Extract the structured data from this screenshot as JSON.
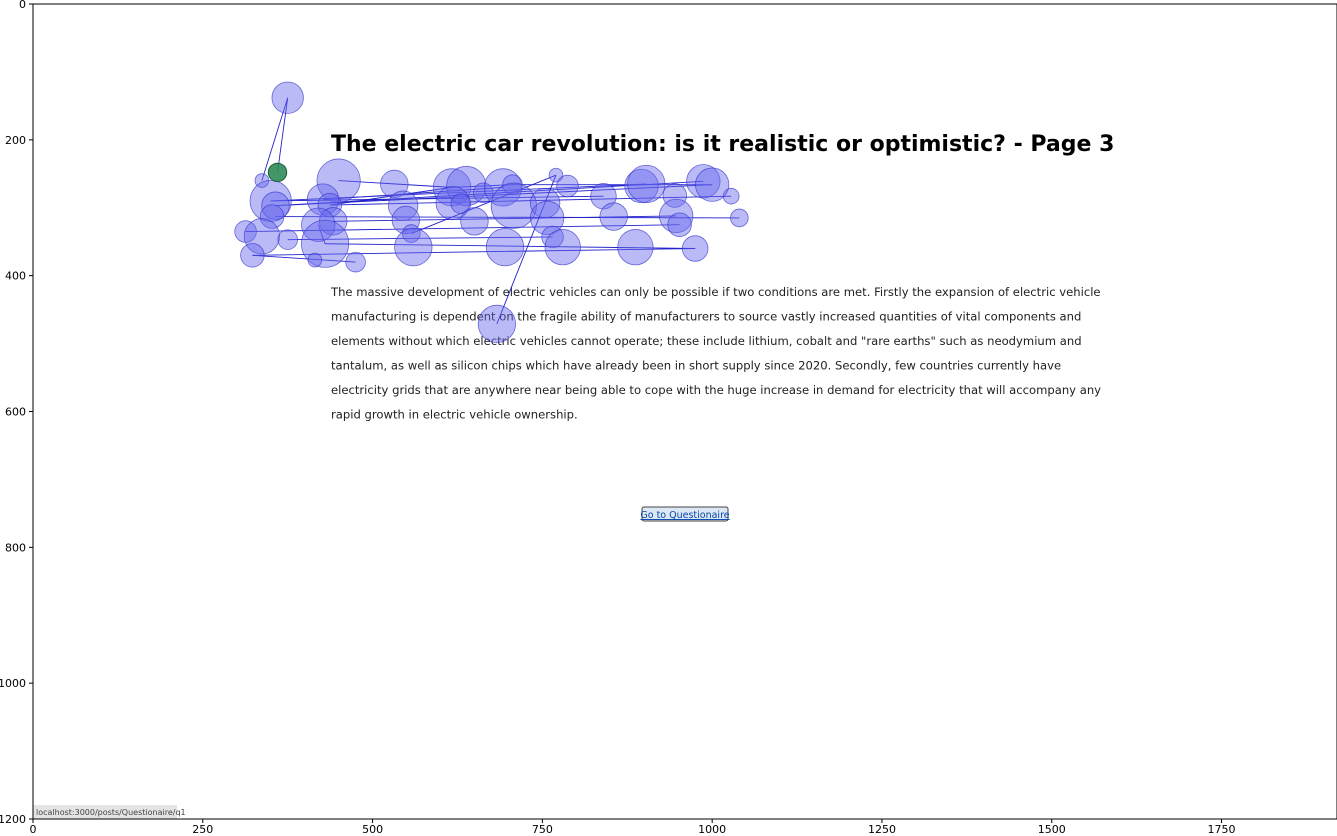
{
  "page": {
    "title": "The electric car revolution: is it realistic or optimistic? - Page 3",
    "body_lines": [
      "The massive development of electric vehicles can only be possible if two conditions are met. Firstly the expansion of electric vehicle",
      "manufacturing is dependent on the fragile ability of manufacturers to source vastly increased quantities of vital components and",
      "elements without which electric vehicles cannot operate; these include lithium, cobalt and \"rare earths\" such as neodymium and",
      "tantalum, as well as silicon chips which have already been in short supply since 2020. Secondly, few countries currently have",
      "electricity grids that are anywhere near being able to cope with the huge increase in demand for electricity that will accompany any",
      "rapid growth in electric vehicle ownership."
    ],
    "button_label": "Go to Questionaire",
    "status_url": "localhost:3000/posts/Questionaire/q1"
  },
  "colors": {
    "fixation_fill": "#6666ee",
    "fixation_edge": "#3333cc",
    "saccade_line": "#2222cc",
    "current_fixation": "#2e8b57",
    "link": "#0645ad",
    "button_bg": "#dde8f5",
    "button_border": "#444444",
    "status_bg": "#e4e4e4"
  },
  "chart_data": {
    "type": "scatter",
    "xlim": [
      0,
      1920
    ],
    "ylim": [
      1200,
      0
    ],
    "xticks": [
      0,
      250,
      500,
      750,
      1000,
      1250,
      1500,
      1750
    ],
    "yticks": [
      0,
      200,
      400,
      600,
      800,
      1000,
      1200
    ],
    "grid": false,
    "current_fixation": {
      "x": 360,
      "y": 248,
      "r": 12
    },
    "fixations": [
      {
        "x": 375,
        "y": 138,
        "r": 16
      },
      {
        "x": 337,
        "y": 260,
        "r": 7
      },
      {
        "x": 450,
        "y": 260,
        "r": 22
      },
      {
        "x": 532,
        "y": 265,
        "r": 14
      },
      {
        "x": 617,
        "y": 270,
        "r": 19
      },
      {
        "x": 638,
        "y": 268,
        "r": 20
      },
      {
        "x": 663,
        "y": 278,
        "r": 10
      },
      {
        "x": 692,
        "y": 270,
        "r": 19
      },
      {
        "x": 706,
        "y": 266,
        "r": 10
      },
      {
        "x": 770,
        "y": 252,
        "r": 7
      },
      {
        "x": 787,
        "y": 268,
        "r": 11
      },
      {
        "x": 840,
        "y": 283,
        "r": 13
      },
      {
        "x": 896,
        "y": 268,
        "r": 17
      },
      {
        "x": 903,
        "y": 265,
        "r": 19
      },
      {
        "x": 945,
        "y": 282,
        "r": 12
      },
      {
        "x": 987,
        "y": 261,
        "r": 17
      },
      {
        "x": 1000,
        "y": 266,
        "r": 17
      },
      {
        "x": 1028,
        "y": 283,
        "r": 8
      },
      {
        "x": 350,
        "y": 290,
        "r": 21
      },
      {
        "x": 357,
        "y": 297,
        "r": 14
      },
      {
        "x": 427,
        "y": 288,
        "r": 16
      },
      {
        "x": 437,
        "y": 296,
        "r": 12
      },
      {
        "x": 545,
        "y": 297,
        "r": 15
      },
      {
        "x": 618,
        "y": 293,
        "r": 17
      },
      {
        "x": 630,
        "y": 294,
        "r": 10
      },
      {
        "x": 708,
        "y": 297,
        "r": 23
      },
      {
        "x": 754,
        "y": 293,
        "r": 15
      },
      {
        "x": 352,
        "y": 313,
        "r": 12
      },
      {
        "x": 442,
        "y": 320,
        "r": 14
      },
      {
        "x": 549,
        "y": 318,
        "r": 14
      },
      {
        "x": 650,
        "y": 320,
        "r": 14
      },
      {
        "x": 757,
        "y": 315,
        "r": 17
      },
      {
        "x": 855,
        "y": 313,
        "r": 14
      },
      {
        "x": 947,
        "y": 312,
        "r": 17
      },
      {
        "x": 952,
        "y": 325,
        "r": 12
      },
      {
        "x": 1040,
        "y": 315,
        "r": 9
      },
      {
        "x": 313,
        "y": 335,
        "r": 11
      },
      {
        "x": 337,
        "y": 342,
        "r": 18
      },
      {
        "x": 375,
        "y": 347,
        "r": 10
      },
      {
        "x": 420,
        "y": 325,
        "r": 17
      },
      {
        "x": 430,
        "y": 353,
        "r": 24
      },
      {
        "x": 557,
        "y": 338,
        "r": 9
      },
      {
        "x": 560,
        "y": 358,
        "r": 19
      },
      {
        "x": 695,
        "y": 358,
        "r": 19
      },
      {
        "x": 765,
        "y": 343,
        "r": 11
      },
      {
        "x": 780,
        "y": 358,
        "r": 18
      },
      {
        "x": 887,
        "y": 358,
        "r": 18
      },
      {
        "x": 975,
        "y": 360,
        "r": 13
      },
      {
        "x": 323,
        "y": 370,
        "r": 12
      },
      {
        "x": 415,
        "y": 377,
        "r": 7
      },
      {
        "x": 475,
        "y": 380,
        "r": 10
      },
      {
        "x": 683,
        "y": 471,
        "r": 19
      }
    ],
    "saccades": [
      [
        [
          375,
          138
        ],
        [
          337,
          260
        ]
      ],
      [
        [
          375,
          138
        ],
        [
          360,
          248
        ]
      ],
      [
        [
          450,
          260
        ],
        [
          617,
          270
        ]
      ],
      [
        [
          617,
          270
        ],
        [
          706,
          266
        ]
      ],
      [
        [
          706,
          266
        ],
        [
          1000,
          266
        ]
      ],
      [
        [
          357,
          297
        ],
        [
          1000,
          266
        ]
      ],
      [
        [
          357,
          297
        ],
        [
          987,
          261
        ]
      ],
      [
        [
          350,
          290
        ],
        [
          903,
          265
        ]
      ],
      [
        [
          437,
          296
        ],
        [
          1028,
          283
        ]
      ],
      [
        [
          357,
          313
        ],
        [
          1040,
          315
        ]
      ],
      [
        [
          442,
          320
        ],
        [
          947,
          312
        ]
      ],
      [
        [
          313,
          335
        ],
        [
          952,
          325
        ]
      ],
      [
        [
          375,
          347
        ],
        [
          765,
          343
        ]
      ],
      [
        [
          430,
          353
        ],
        [
          975,
          360
        ]
      ],
      [
        [
          323,
          370
        ],
        [
          975,
          360
        ]
      ],
      [
        [
          323,
          370
        ],
        [
          475,
          380
        ]
      ],
      [
        [
          683,
          471
        ],
        [
          770,
          252
        ]
      ],
      [
        [
          557,
          338
        ],
        [
          770,
          252
        ]
      ],
      [
        [
          437,
          296
        ],
        [
          617,
          270
        ]
      ],
      [
        [
          427,
          288
        ],
        [
          692,
          270
        ]
      ],
      [
        [
          350,
          290
        ],
        [
          840,
          283
        ]
      ],
      [
        [
          420,
          325
        ],
        [
          430,
          353
        ]
      ]
    ]
  }
}
